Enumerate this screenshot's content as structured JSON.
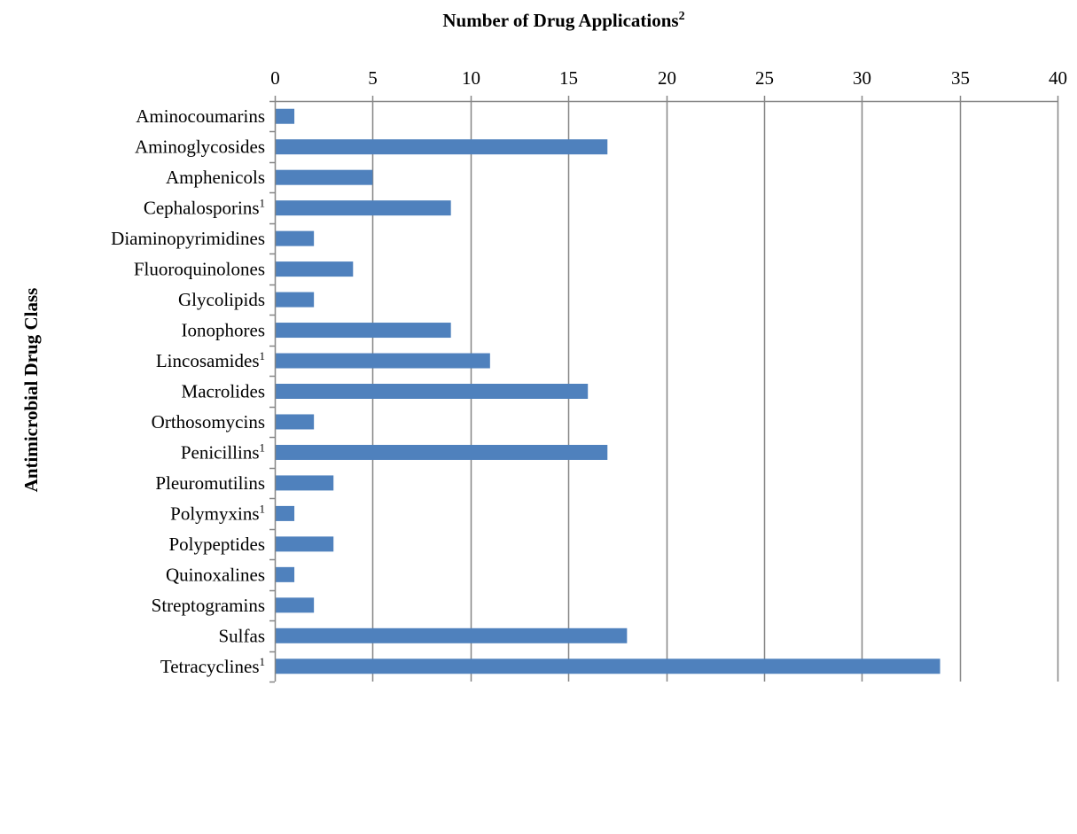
{
  "chart_data": {
    "type": "bar",
    "orientation": "horizontal",
    "xlabel": "Number of Drug Applications",
    "xlabel_superscript": "2",
    "ylabel": "Antimicrobial Drug Class",
    "categories": [
      "Aminocoumarins",
      "Aminoglycosides",
      "Amphenicols",
      "Cephalosporins",
      "Diaminopyrimidines",
      "Fluoroquinolones",
      "Glycolipids",
      "Ionophores",
      "Lincosamides",
      "Macrolides",
      "Orthosomycins",
      "Penicillins",
      "Pleuromutilins",
      "Polymyxins",
      "Polypeptides",
      "Quinoxalines",
      "Streptogramins",
      "Sulfas",
      "Tetracyclines"
    ],
    "category_superscripts": [
      "",
      "",
      "",
      "1",
      "",
      "",
      "",
      "",
      "1",
      "",
      "",
      "1",
      "",
      "1",
      "",
      "",
      "",
      "",
      "1"
    ],
    "values": [
      1,
      17,
      5,
      9,
      2,
      4,
      2,
      9,
      11,
      16,
      2,
      17,
      3,
      1,
      3,
      1,
      2,
      18,
      34
    ],
    "xlim": [
      0,
      40
    ],
    "xticks": [
      0,
      5,
      10,
      15,
      20,
      25,
      30,
      35,
      40
    ],
    "x_axis_position": "top",
    "grid": true,
    "legend": "none",
    "bar_color": "#4F81BD",
    "grid_color": "#868686",
    "axis_color": "#868686"
  }
}
